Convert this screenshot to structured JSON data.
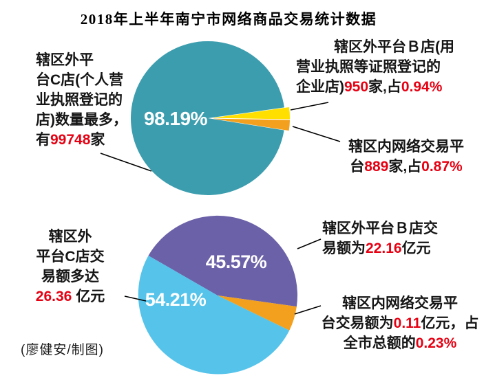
{
  "page": {
    "title": "2018年上半年南宁市网络商品交易统计数据",
    "credit": "(廖健安/制图)"
  },
  "colors": {
    "teal": "#3b9dae",
    "yellow": "#ffdf00",
    "orange": "#f2a01e",
    "purple": "#6b61a8",
    "light_blue": "#55c3ea",
    "red": "#e60012",
    "text": "#151515",
    "percent_text": "#ffffff"
  },
  "chart_data": [
    {
      "type": "pie",
      "legend": "none",
      "label_style": "leader-lines",
      "slices": [
        {
          "label": "辖区外平台C店(个人营业执照登记的店)",
          "count": "99748家",
          "percent": 98.19,
          "color": "#3b9dae"
        },
        {
          "label": "辖区外平台B店(用营业执照等证照登记的企业店)",
          "count": "950家",
          "percent": 0.94,
          "color": "#ffdf00"
        },
        {
          "label": "辖区内网络交易平台",
          "count": "889家",
          "percent": 0.87,
          "color": "#f2a01e"
        }
      ]
    },
    {
      "type": "pie",
      "legend": "none",
      "label_style": "leader-lines",
      "slices": [
        {
          "label": "辖区外平台C店交易额",
          "amount": "26.36亿元",
          "percent": 54.21,
          "color": "#55c3ea"
        },
        {
          "label": "辖区外平台B店交易额",
          "amount": "22.16亿元",
          "percent": 45.57,
          "color": "#6b61a8"
        },
        {
          "label": "辖区内网络交易平台交易额",
          "amount": "0.11亿元",
          "percent": 0.23,
          "percent_note": "占全市总额的0.23%",
          "color": "#f2a01e"
        }
      ]
    }
  ],
  "labels": {
    "pie1_inner": "98.19%",
    "pie2_inner_purple": "45.57%",
    "pie2_inner_blue": "54.21%",
    "pie1_left": {
      "pre": "辖区外平\n台C店(个人营\n业执照登记的\n店)数量最多，\n有",
      "red1": "99748",
      "post": "家"
    },
    "pie1_right_b": {
      "pre": "辖区外平台Ｂ店(用\n营业执照等证照登记的\n企业店)",
      "red1": "950",
      "mid": "家,占",
      "red2": "0.94%"
    },
    "pie1_right_inner": {
      "pre": "辖区内网络交易平\n台",
      "red1": "889",
      "mid": "家,占",
      "red2": "0.87%"
    },
    "pie2_left": {
      "pre": "辖区外\n平台C店交\n易额多达\n",
      "red1": "26.36",
      "post": " 亿元"
    },
    "pie2_right_b": {
      "pre": "辖区外平台Ｂ店交\n易额为",
      "red1": "22.16",
      "post": "亿元"
    },
    "pie2_right_inner": {
      "pre": "辖区内网络交易平\n台交易额为",
      "red1": "0.11",
      "mid": "亿元，占\n全市总额的",
      "red2": "0.23%"
    }
  }
}
